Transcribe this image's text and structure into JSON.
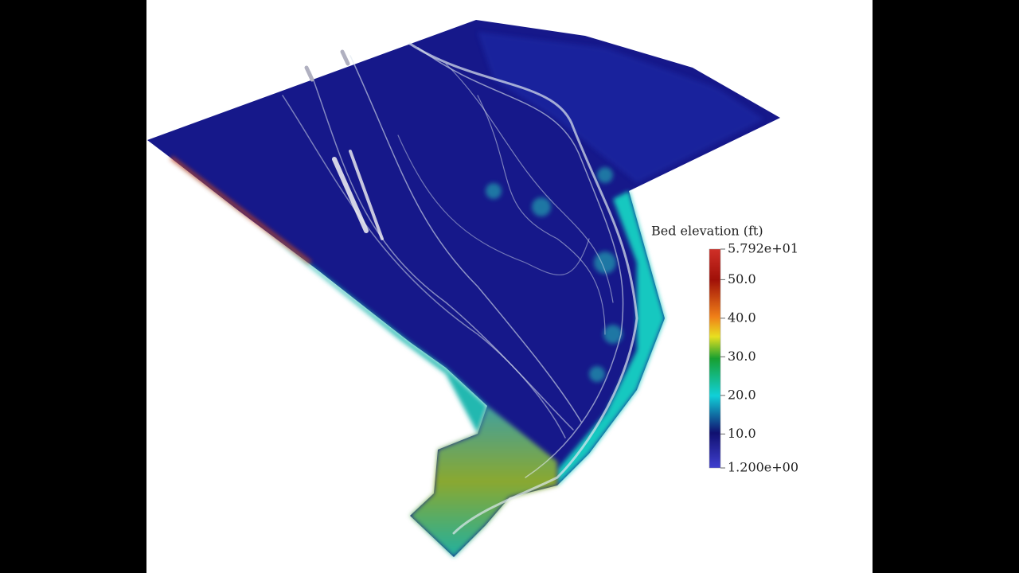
{
  "colorbar": {
    "title": "Bed elevation (ft)",
    "range": [
      1.2,
      57.92
    ],
    "ticks": [
      {
        "value": 57.92,
        "label": "5.792e+01"
      },
      {
        "value": 50,
        "label": "50.0"
      },
      {
        "value": 40,
        "label": "40.0"
      },
      {
        "value": 30,
        "label": "30.0"
      },
      {
        "value": 20,
        "label": "20.0"
      },
      {
        "value": 10,
        "label": "10.0"
      },
      {
        "value": 1.2,
        "label": "1.200e+00"
      }
    ]
  }
}
